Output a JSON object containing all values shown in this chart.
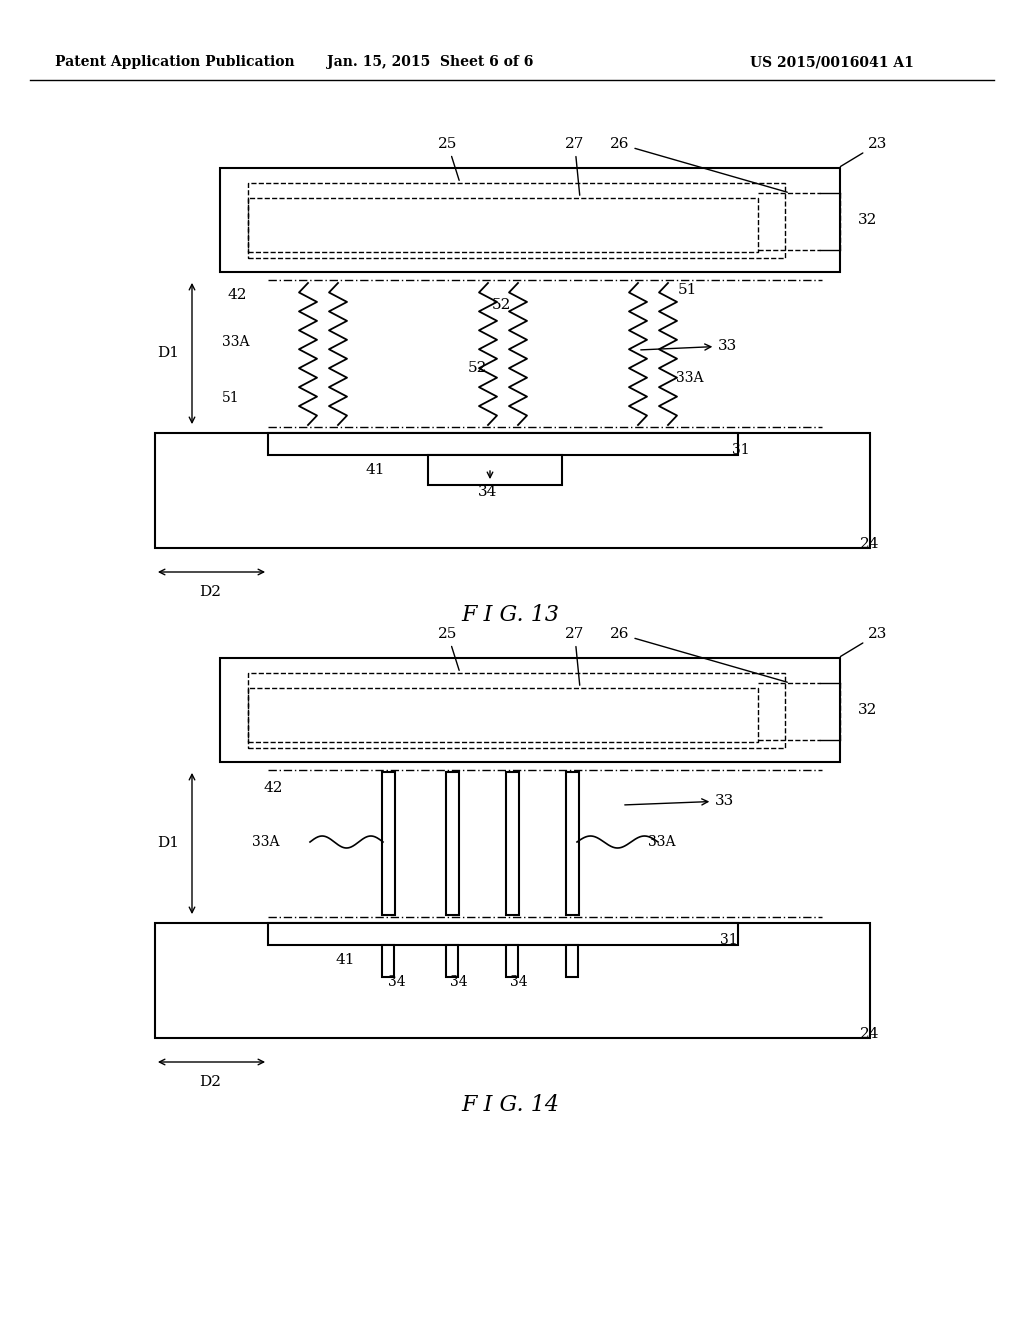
{
  "bg_color": "#ffffff",
  "header_left": "Patent Application Publication",
  "header_mid": "Jan. 15, 2015  Sheet 6 of 6",
  "header_right": "US 2015/0016041 A1",
  "fig13_label": "F I G. 13",
  "fig14_label": "F I G. 14"
}
